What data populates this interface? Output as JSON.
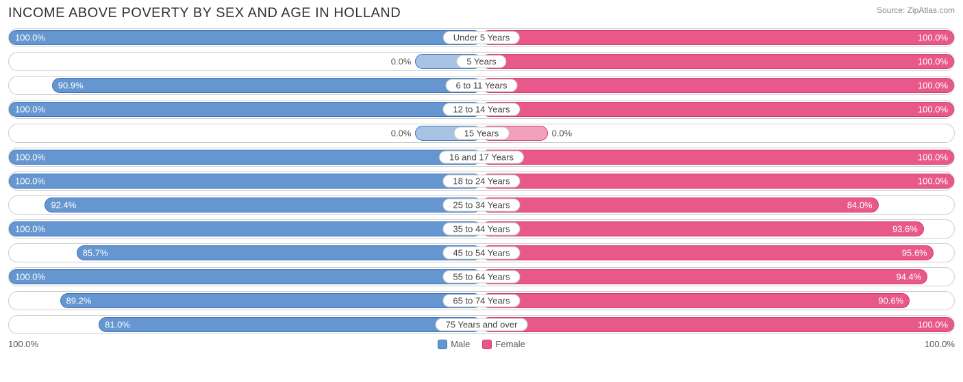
{
  "title": "INCOME ABOVE POVERTY BY SEX AND AGE IN HOLLAND",
  "source": "Source: ZipAtlas.com",
  "chart": {
    "type": "diverging-bar",
    "male_color": "#6596d0",
    "male_border": "#3f73b6",
    "male_faded": "#a9c3e4",
    "female_color": "#e8588b",
    "female_border": "#d13a70",
    "female_faded": "#f2a1bd",
    "track_border": "#cccccc",
    "background": "#ffffff",
    "label_fontsize": 13,
    "title_fontsize": 20,
    "axis_min_label": "100.0%",
    "axis_max_label": "100.0%",
    "min_bar_pct": 14,
    "rows": [
      {
        "category": "Under 5 Years",
        "male": 100.0,
        "female": 100.0
      },
      {
        "category": "5 Years",
        "male": 0.0,
        "female": 100.0
      },
      {
        "category": "6 to 11 Years",
        "male": 90.9,
        "female": 100.0
      },
      {
        "category": "12 to 14 Years",
        "male": 100.0,
        "female": 100.0
      },
      {
        "category": "15 Years",
        "male": 0.0,
        "female": 0.0
      },
      {
        "category": "16 and 17 Years",
        "male": 100.0,
        "female": 100.0
      },
      {
        "category": "18 to 24 Years",
        "male": 100.0,
        "female": 100.0
      },
      {
        "category": "25 to 34 Years",
        "male": 92.4,
        "female": 84.0
      },
      {
        "category": "35 to 44 Years",
        "male": 100.0,
        "female": 93.6
      },
      {
        "category": "45 to 54 Years",
        "male": 85.7,
        "female": 95.6
      },
      {
        "category": "55 to 64 Years",
        "male": 100.0,
        "female": 94.4
      },
      {
        "category": "65 to 74 Years",
        "male": 89.2,
        "female": 90.6
      },
      {
        "category": "75 Years and over",
        "male": 81.0,
        "female": 100.0
      }
    ]
  },
  "legend": {
    "male": "Male",
    "female": "Female"
  }
}
